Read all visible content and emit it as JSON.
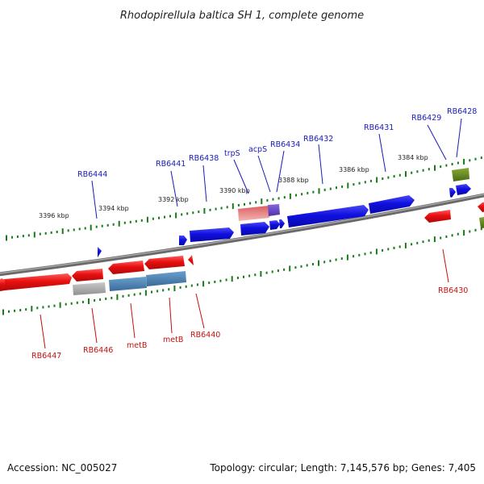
{
  "title": "Rhodopirellula baltica SH 1, complete genome",
  "accession": "Accession: NC_005027",
  "topology": "Topology: circular; Length: 7,145,576 bp; Genes: 7,405",
  "colors": {
    "forward_gene": "#1010e0",
    "reverse_gene": "#e81010",
    "rna_gene": "#e87878",
    "purple_feature": "#7050c8",
    "olive_feature": "#6a8a20",
    "grey_feature": "#a8a8a8",
    "steelblue_feature": "#4682b4",
    "backbone": "#808080",
    "tick": "#1a7a1a"
  },
  "ruler_labels": [
    "3396 kbp",
    "3394 kbp",
    "3392 kbp",
    "3390 kbp",
    "3388 kbp",
    "3386 kbp",
    "3384 kbp"
  ],
  "top_genes": [
    "RB6444",
    "RB6441",
    "RB6438",
    "trpS",
    "acpS",
    "RB6434",
    "RB6432",
    "RB6431",
    "RB6429",
    "RB6428"
  ],
  "bottom_genes": [
    "RB6447",
    "RB6446",
    "metB",
    "metB",
    "RB6440",
    "RB6430"
  ]
}
